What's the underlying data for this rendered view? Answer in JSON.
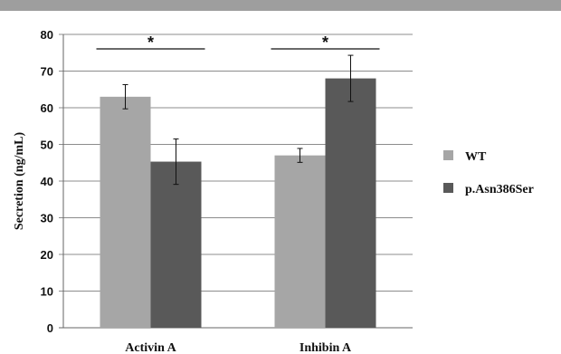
{
  "chart_data": {
    "type": "bar",
    "ylabel": "Secretion (ng/mL)",
    "ylim": [
      0,
      80
    ],
    "yticks": [
      0,
      10,
      20,
      30,
      40,
      50,
      60,
      70,
      80
    ],
    "grid": true,
    "legend_position": "right",
    "categories": [
      "Activin A",
      "Inhibin A"
    ],
    "series": [
      {
        "name": "WT",
        "color": "#a6a6a6",
        "values": [
          63.0,
          47.0
        ],
        "errors": [
          3.3,
          1.9
        ]
      },
      {
        "name": "p.Asn386Ser",
        "color": "#595959",
        "values": [
          45.3,
          68.0
        ],
        "errors": [
          6.2,
          6.3
        ]
      }
    ],
    "annotations": [
      {
        "category": "Activin A",
        "text": "*"
      },
      {
        "category": "Inhibin A",
        "text": "*"
      }
    ]
  }
}
